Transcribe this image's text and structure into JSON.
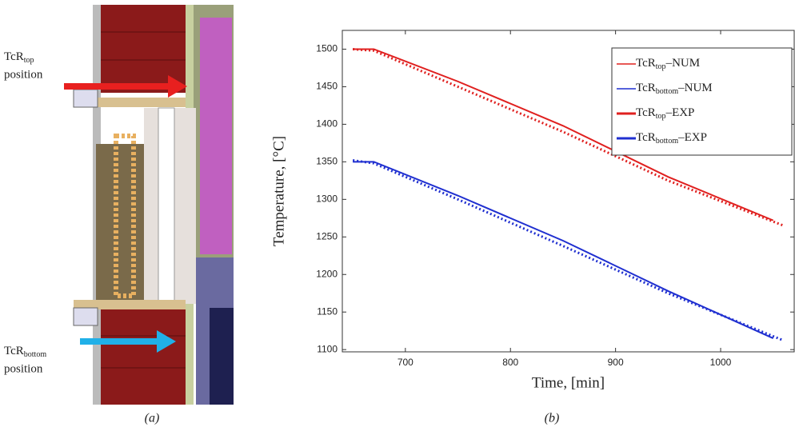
{
  "figure": {
    "panel_a": {
      "label": "(a)",
      "top_label": {
        "name": "TcR",
        "subscript": "top",
        "suffix": "position"
      },
      "bottom_label": {
        "name": "TcR",
        "subscript": "bottom",
        "suffix": "position"
      }
    },
    "panel_b": {
      "label": "(b)"
    }
  },
  "chart_data": {
    "type": "line",
    "x_label": "Time, [min]",
    "y_label": "Temperature, [°C]",
    "xlim": [
      640,
      1070
    ],
    "ylim": [
      1097,
      1525
    ],
    "xticks": [
      700,
      800,
      900,
      1000
    ],
    "yticks": [
      1100,
      1150,
      1200,
      1250,
      1300,
      1350,
      1400,
      1450,
      1500
    ],
    "legend": "upper right",
    "series": [
      {
        "name": "TcR",
        "subscript": "top",
        "suffix": "–NUM",
        "color": "#e0201f",
        "style": "thin",
        "x": [
          650,
          670,
          750,
          850,
          950,
          1050
        ],
        "values": [
          1500,
          1500,
          1457,
          1398,
          1330,
          1272
        ]
      },
      {
        "name": "TcR",
        "subscript": "bottom",
        "suffix": "–NUM",
        "color": "#1f2fd0",
        "style": "thin",
        "x": [
          650,
          670,
          750,
          850,
          950,
          1050
        ],
        "values": [
          1350,
          1350,
          1305,
          1245,
          1178,
          1115
        ]
      },
      {
        "name": "TcR",
        "subscript": "top",
        "suffix": "–EXP",
        "color": "#e0201f",
        "style": "thick",
        "x": [
          650,
          670,
          750,
          850,
          950,
          1060
        ],
        "values": [
          1500,
          1498,
          1450,
          1390,
          1325,
          1265
        ]
      },
      {
        "name": "TcR",
        "subscript": "bottom",
        "suffix": "–EXP",
        "color": "#1f2fd0",
        "style": "thick",
        "x": [
          650,
          670,
          750,
          850,
          950,
          1060
        ],
        "values": [
          1352,
          1348,
          1300,
          1238,
          1175,
          1112
        ]
      }
    ]
  }
}
